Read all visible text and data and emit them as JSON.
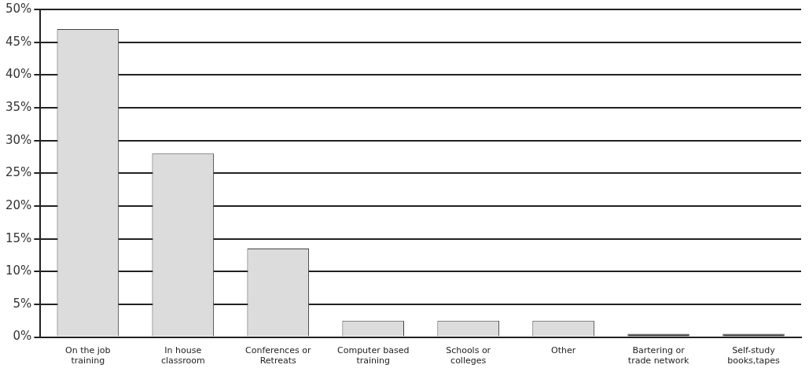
{
  "chart_data": {
    "type": "bar",
    "categories": [
      "On the job training",
      "In house classroom",
      "Conferences or Retreats",
      "Computer based training",
      "Schools or colleges",
      "Other",
      "Bartering or trade network",
      "Self-study books,tapes"
    ],
    "values": [
      47,
      28,
      13.5,
      2.5,
      2.5,
      2.5,
      0.5,
      0.5
    ],
    "colors": [
      "#dcdcdc",
      "#dcdcdc",
      "#dcdcdc",
      "#dcdcdc",
      "#dcdcdc",
      "#dcdcdc",
      "#333333",
      "#333333"
    ],
    "ylim": [
      0,
      50
    ],
    "yticks": [
      {
        "value": 0,
        "label": "0%"
      },
      {
        "value": 5,
        "label": "5%"
      },
      {
        "value": 10,
        "label": "10%"
      },
      {
        "value": 15,
        "label": "15%"
      },
      {
        "value": 20,
        "label": "20%"
      },
      {
        "value": 25,
        "label": "25%"
      },
      {
        "value": 30,
        "label": "30%"
      },
      {
        "value": 35,
        "label": "35%"
      },
      {
        "value": 40,
        "label": "40%"
      },
      {
        "value": 45,
        "label": "45%"
      },
      {
        "value": 50,
        "label": "50%"
      }
    ],
    "grid": "y"
  }
}
